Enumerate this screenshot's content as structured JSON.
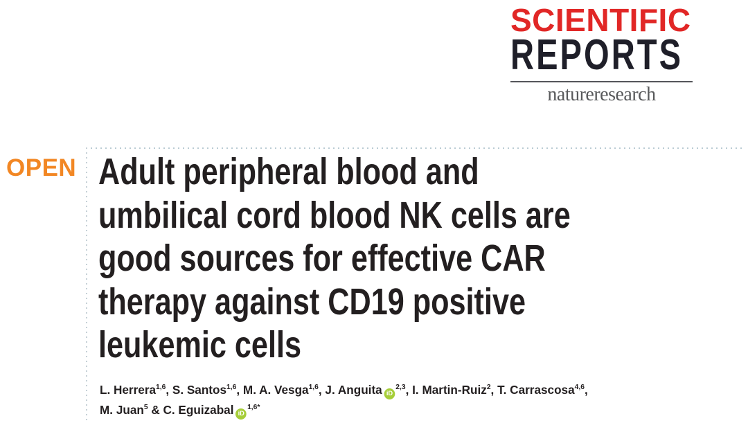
{
  "journal": {
    "masthead_line1": "SCIENTIFIC",
    "masthead_line2": "REPORTS",
    "publisher_logo": "natureresearch",
    "colors": {
      "masthead_red": "#e12726",
      "masthead_dark": "#1f1f29",
      "publisher_gray": "#58595b",
      "dotted_rule": "#b9cbd3"
    }
  },
  "access": {
    "open_label": "OPEN",
    "open_color": "#f28724"
  },
  "article": {
    "title_lines": [
      "Adult peripheral blood and",
      "umbilical cord blood NK cells are",
      "good sources for effective CAR",
      "therapy against CD19 positive",
      "leukemic cells"
    ],
    "text_color": "#231f20",
    "orcid_icon_label": "iD",
    "orcid_color": "#a6ce39",
    "authors": [
      {
        "name": "L. Herrera",
        "sup": "1,6",
        "sep": ", ",
        "orcid": false
      },
      {
        "name": "S. Santos",
        "sup": "1,6",
        "sep": ", ",
        "orcid": false
      },
      {
        "name": "M. A. Vesga",
        "sup": "1,6",
        "sep": ", ",
        "orcid": false
      },
      {
        "name": "J. Anguita",
        "sup": "2,3",
        "sep": ", ",
        "orcid": true
      },
      {
        "name": "I. Martin-Ruiz",
        "sup": "2",
        "sep": ", ",
        "orcid": false
      },
      {
        "name": "T. Carrascosa",
        "sup": "4,6",
        "sep": ",",
        "orcid": false
      },
      {
        "name": "M. Juan",
        "sup": "5",
        "sep": " & ",
        "orcid": false
      },
      {
        "name": "C. Eguizabal",
        "sup": "1,6*",
        "sep": "",
        "orcid": true
      }
    ]
  }
}
